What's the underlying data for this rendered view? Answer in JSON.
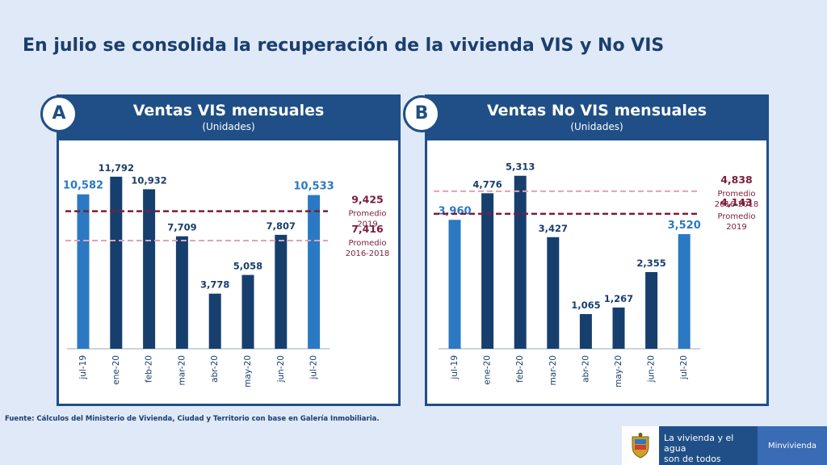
{
  "slide": {
    "title": "En julio se consolida la recuperación de la vivienda VIS y No VIS",
    "source": "Fuente: Cálculos del Ministerio de Vivienda, Ciudad y Territorio con base en Galería Inmobiliaria.",
    "footer": {
      "tagline_line1": "La vivienda y el agua",
      "tagline_line2": "son de todos",
      "brand": "Minvivienda"
    }
  },
  "colors": {
    "navy": "#1f4f86",
    "bar_dark": "#163f6e",
    "bar_light": "#2b79c2",
    "ref_dark": "#7b1d3a",
    "ref_light": "#e0a3b4",
    "label_dark": "#1a3e6e",
    "label_light": "#2b79c2"
  },
  "chart_data": [
    {
      "type": "bar",
      "badge": "A",
      "title": "Ventas VIS mensuales",
      "subtitle": "(Unidades)",
      "categories": [
        "jul-19",
        "ene-20",
        "feb-20",
        "mar-20",
        "abr-20",
        "may-20",
        "jun-20",
        "jul-20"
      ],
      "values": [
        10582,
        11792,
        10932,
        7709,
        3778,
        5058,
        7807,
        10533
      ],
      "value_labels": [
        "10,582",
        "11,792",
        "10,932",
        "7,709",
        "3,778",
        "5,058",
        "7,807",
        "10,533"
      ],
      "highlight": [
        true,
        false,
        false,
        false,
        false,
        false,
        false,
        true
      ],
      "ylim": [
        0,
        13500
      ],
      "reference_lines": [
        {
          "value": 9425,
          "value_label": "9,425",
          "label_line1": "Promedio",
          "label_line2": "2019",
          "style": "dark"
        },
        {
          "value": 7416,
          "value_label": "7,416",
          "label_line1": "Promedio",
          "label_line2": "2016-2018",
          "style": "light"
        }
      ]
    },
    {
      "type": "bar",
      "badge": "B",
      "title": "Ventas No VIS mensuales",
      "subtitle": "(Unidades)",
      "categories": [
        "jul-19",
        "ene-20",
        "feb-20",
        "mar-20",
        "abr-20",
        "may-20",
        "jun-20",
        "jul-20"
      ],
      "values": [
        3960,
        4776,
        5313,
        3427,
        1065,
        1267,
        2355,
        3520
      ],
      "value_labels": [
        "3,960",
        "4,776",
        "5,313",
        "3,427",
        "1,065",
        "1,267",
        "2,355",
        "3,520"
      ],
      "highlight": [
        true,
        false,
        false,
        false,
        false,
        false,
        false,
        true
      ],
      "ylim": [
        0,
        6050
      ],
      "reference_lines": [
        {
          "value": 4838,
          "value_label": "4,838",
          "label_line1": "Promedio",
          "label_line2": "2016-2018",
          "style": "light"
        },
        {
          "value": 4143,
          "value_label": "4,143",
          "label_line1": "Promedio",
          "label_line2": "2019",
          "style": "dark"
        }
      ]
    }
  ]
}
